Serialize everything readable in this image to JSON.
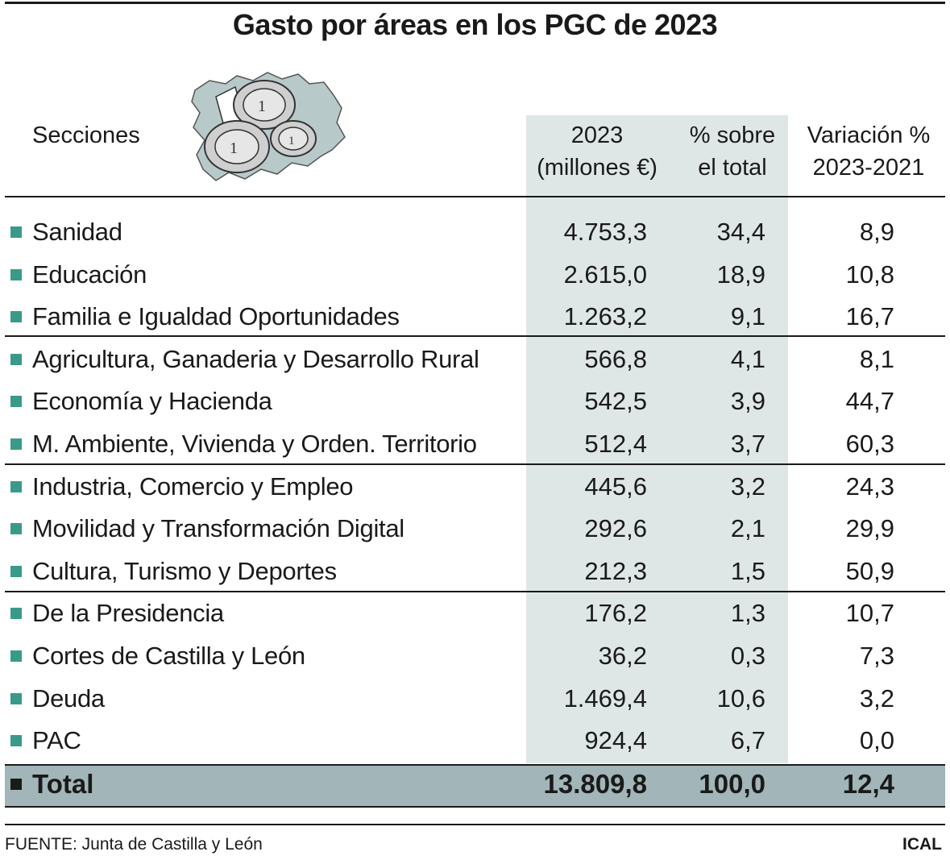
{
  "title": "Gasto por áreas en los PGC de 2023",
  "headers": {
    "secciones": "Secciones",
    "amount_line1": "2023",
    "amount_line2": "(millones €)",
    "pct_line1": "% sobre",
    "pct_line2": "el total",
    "var_line1": "Variación %",
    "var_line2": "2023-2021"
  },
  "rows": [
    {
      "label": "Sanidad",
      "amount": "4.753,3",
      "pct": "34,4",
      "var": "8,9"
    },
    {
      "label": "Educación",
      "amount": "2.615,0",
      "pct": "18,9",
      "var": "10,8"
    },
    {
      "label": "Familia e Igualdad Oportunidades",
      "amount": "1.263,2",
      "pct": "9,1",
      "var": "16,7"
    },
    {
      "label": "Agricultura, Ganaderia y Desarrollo Rural",
      "amount": "566,8",
      "pct": "4,1",
      "var": "8,1"
    },
    {
      "label": "Economía y Hacienda",
      "amount": "542,5",
      "pct": "3,9",
      "var": "44,7"
    },
    {
      "label": "M. Ambiente, Vivienda y Orden. Territorio",
      "amount": "512,4",
      "pct": "3,7",
      "var": "60,3"
    },
    {
      "label": "Industria, Comercio y Empleo",
      "amount": "445,6",
      "pct": "3,2",
      "var": "24,3"
    },
    {
      "label": "Movilidad y Transformación Digital",
      "amount": "292,6",
      "pct": "2,1",
      "var": "29,9"
    },
    {
      "label": "Cultura, Turismo y Deportes",
      "amount": "212,3",
      "pct": "1,5",
      "var": "50,9"
    },
    {
      "label": "De la Presidencia",
      "amount": "176,2",
      "pct": "1,3",
      "var": "10,7"
    },
    {
      "label": "Cortes de Castilla y León",
      "amount": "36,2",
      "pct": "0,3",
      "var": "7,3"
    },
    {
      "label": "Deuda",
      "amount": "1.469,4",
      "pct": "10,6",
      "var": "3,2"
    },
    {
      "label": "PAC",
      "amount": "924,4",
      "pct": "6,7",
      "var": "0,0"
    }
  ],
  "total": {
    "label": "Total",
    "amount": "13.809,8",
    "pct": "100,0",
    "var": "12,4"
  },
  "source": "FUENTE: Junta de Castilla y León",
  "credit": "ICAL",
  "colors": {
    "bullet": "#3a9a8a",
    "shade": "#dfe7e6",
    "total_bar": "#a2b5b8"
  }
}
